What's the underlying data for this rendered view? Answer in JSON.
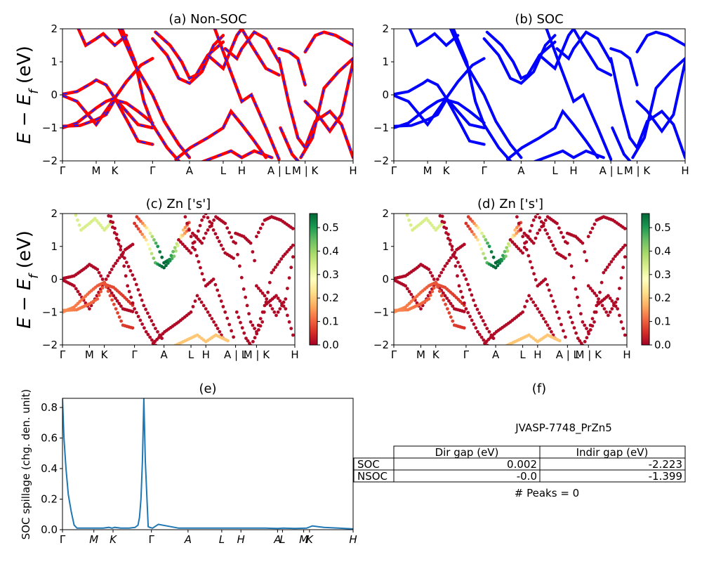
{
  "colors": {
    "nonsoc_main": "#ff0000",
    "nonsoc_dash": "#1f1fff",
    "soc": "#0000ff",
    "spillage": "#1f77b4",
    "colormap": [
      "#a50026",
      "#d73027",
      "#f46d43",
      "#fdae61",
      "#fee08b",
      "#ffffbf",
      "#d9ef8b",
      "#a6d96a",
      "#66bd63",
      "#1a9850",
      "#006837"
    ]
  },
  "ylabel_energy": "E − E",
  "ylabel_energy_sub": "f",
  "ylabel_energy_unit": "(eV)",
  "kpath_labels": [
    "Γ",
    "M",
    "K",
    "Γ",
    "A",
    "L",
    "H",
    "A | L",
    "M | K",
    "H"
  ],
  "kpath_labels_c": [
    "Γ",
    "M",
    "K",
    "Γ",
    "A",
    "L",
    "H",
    "A | L",
    "M | K",
    "H"
  ],
  "spill_labels": [
    "Γ",
    "M",
    "K",
    "Γ",
    "A",
    "L",
    "H",
    "A",
    "L",
    "M",
    "K",
    "H"
  ],
  "chart_data": [
    {
      "id": "a",
      "type": "line",
      "title": "(a) Non-SOC",
      "ylim": [
        -2,
        2
      ],
      "yticks": [
        "2",
        "1",
        "0",
        "−1",
        "−2"
      ],
      "kpos": [
        0,
        0.116,
        0.18,
        0.31,
        0.437,
        0.553,
        0.617,
        0.745,
        0.835,
        1.0
      ]
    },
    {
      "id": "b",
      "type": "line",
      "title": "(b) SOC",
      "ylim": [
        -2,
        2
      ],
      "yticks": [
        "2",
        "1",
        "0",
        "−1",
        "−2"
      ]
    },
    {
      "id": "c",
      "type": "scatter",
      "title": "(c)  Zn ['s']",
      "ylim": [
        -2,
        2
      ],
      "yticks": [
        "2",
        "1",
        "0",
        "−1",
        "−2"
      ],
      "colorbar_ticks": [
        "0.5",
        "0.4",
        "0.3",
        "0.2",
        "0.1",
        "0.0"
      ],
      "colorbar_range": [
        0,
        0.56
      ]
    },
    {
      "id": "d",
      "type": "scatter",
      "title": "(d) Zn ['s']",
      "ylim": [
        -2,
        2
      ],
      "yticks": [
        "2",
        "1",
        "0",
        "−1",
        "−2"
      ],
      "colorbar_ticks": [
        "0.5",
        "0.4",
        "0.3",
        "0.2",
        "0.1",
        "0.0"
      ],
      "colorbar_range": [
        0,
        0.56
      ]
    },
    {
      "id": "e",
      "type": "line",
      "title": "(e)",
      "ylabel": "SOC spillage (chg. den. unit)",
      "ylim": [
        0,
        0.86
      ],
      "yticks": [
        "0.8",
        "0.6",
        "0.4",
        "0.2",
        "0.0"
      ],
      "x": [
        0,
        0.005,
        0.012,
        0.02,
        0.03,
        0.04,
        0.05,
        0.07,
        0.1,
        0.14,
        0.16,
        0.17,
        0.18,
        0.2,
        0.23,
        0.25,
        0.26,
        0.265,
        0.27,
        0.275,
        0.28,
        0.285,
        0.295,
        0.3,
        0.31,
        0.33,
        0.4,
        0.5,
        0.6,
        0.7,
        0.74,
        0.76,
        0.8,
        0.84,
        0.86,
        0.88,
        0.9,
        0.95,
        1.0
      ],
      "values": [
        0.86,
        0.6,
        0.4,
        0.23,
        0.12,
        0.03,
        0.01,
        0.01,
        0.01,
        0.01,
        0.015,
        0.01,
        0.015,
        0.01,
        0.01,
        0.015,
        0.03,
        0.08,
        0.2,
        0.45,
        0.86,
        0.45,
        0.02,
        0.015,
        0.01,
        0.035,
        0.01,
        0.01,
        0.01,
        0.01,
        0.008,
        0.01,
        0.008,
        0.01,
        0.025,
        0.02,
        0.015,
        0.01,
        0.005
      ]
    }
  ],
  "info": {
    "title": "(f)",
    "material": "JVASP-7748_PrZn5",
    "table_headers": [
      "Dir gap (eV)",
      "Indir gap (eV)"
    ],
    "rows": [
      {
        "label": "SOC",
        "dir": "0.002",
        "indir": "-2.223"
      },
      {
        "label": "NSOC",
        "dir": "-0.0",
        "indir": "-1.399"
      }
    ],
    "peaks": "# Peaks = 0"
  }
}
